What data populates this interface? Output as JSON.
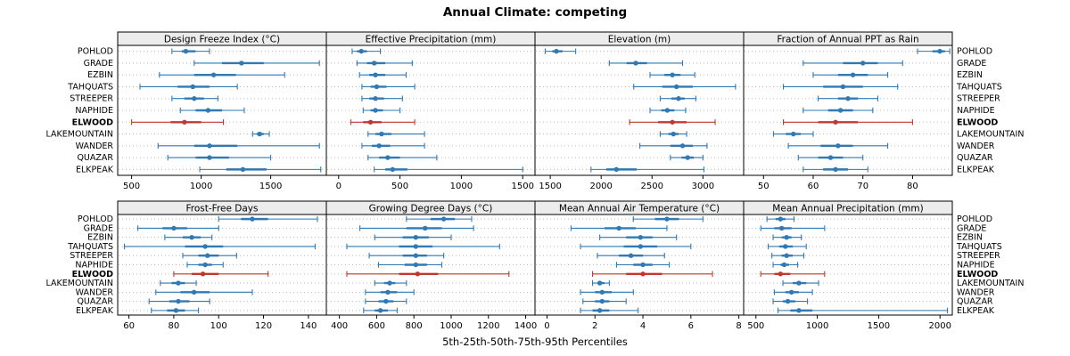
{
  "chart_data": {
    "type": "dotplot",
    "title": "Annual Climate: competing",
    "caption": "5th-25th-50th-75th-95th Percentiles",
    "percentile_labels": [
      "5th",
      "25th",
      "50th",
      "75th",
      "95th"
    ],
    "legend_position": "none",
    "grid": "horizontal-dotted",
    "stations": [
      "POHLOD",
      "GRADE",
      "EZBIN",
      "TAHQUATS",
      "STREEPER",
      "NAPHIDE",
      "ELWOOD",
      "LAKEMOUNTAIN",
      "WANDER",
      "QUAZAR",
      "ELKPEAK"
    ],
    "highlight_station": "ELWOOD",
    "colors": {
      "series": "#2f79b5",
      "highlight": "#c0392b",
      "grid": "#bbbbbb",
      "strip_bg": "#ececec",
      "border": "#000000"
    },
    "panels": [
      {
        "title": "Design Freeze Index (°C)",
        "xlim": [
          400,
          1900
        ],
        "ticks": [
          500,
          1000,
          1500
        ],
        "values": {
          "POHLOD": [
            790,
            860,
            890,
            960,
            1060
          ],
          "GRADE": [
            950,
            1150,
            1290,
            1450,
            1850
          ],
          "EZBIN": [
            700,
            950,
            1090,
            1250,
            1600
          ],
          "TAHQUATS": [
            560,
            830,
            940,
            1060,
            1260
          ],
          "STREEPER": [
            790,
            880,
            950,
            1020,
            1120
          ],
          "NAPHIDE": [
            850,
            960,
            1050,
            1150,
            1310
          ],
          "ELWOOD": [
            500,
            780,
            880,
            1000,
            1160
          ],
          "LAKEMOUNTAIN": [
            1370,
            1400,
            1420,
            1450,
            1490
          ],
          "WANDER": [
            690,
            950,
            1060,
            1260,
            1850
          ],
          "QUAZAR": [
            760,
            960,
            1060,
            1200,
            1500
          ],
          "ELKPEAK": [
            990,
            1180,
            1300,
            1470,
            1860
          ]
        }
      },
      {
        "title": "Effective Precipitation (mm)",
        "xlim": [
          -100,
          1600
        ],
        "ticks": [
          0,
          500,
          1000,
          1500
        ],
        "values": {
          "POHLOD": [
            110,
            150,
            185,
            230,
            340
          ],
          "GRADE": [
            150,
            230,
            290,
            380,
            600
          ],
          "EZBIN": [
            170,
            250,
            300,
            380,
            550
          ],
          "TAHQUATS": [
            190,
            260,
            310,
            390,
            620
          ],
          "STREEPER": [
            190,
            250,
            300,
            370,
            520
          ],
          "NAPHIDE": [
            200,
            260,
            300,
            360,
            500
          ],
          "ELWOOD": [
            100,
            200,
            260,
            350,
            620
          ],
          "LAKEMOUNTAIN": [
            240,
            300,
            350,
            430,
            700
          ],
          "WANDER": [
            190,
            270,
            330,
            420,
            700
          ],
          "QUAZAR": [
            240,
            330,
            400,
            500,
            800
          ],
          "ELKPEAK": [
            290,
            380,
            440,
            560,
            1500
          ]
        }
      },
      {
        "title": "Elevation (m)",
        "xlim": [
          1350,
          3400
        ],
        "ticks": [
          1500,
          2000,
          2500,
          3000
        ],
        "values": {
          "POHLOD": [
            1450,
            1520,
            1560,
            1620,
            1750
          ],
          "GRADE": [
            2080,
            2250,
            2340,
            2450,
            2800
          ],
          "EZBIN": [
            2480,
            2620,
            2700,
            2780,
            2920
          ],
          "TAHQUATS": [
            2320,
            2600,
            2740,
            2900,
            3320
          ],
          "STREEPER": [
            2580,
            2690,
            2760,
            2820,
            2930
          ],
          "NAPHIDE": [
            2480,
            2590,
            2650,
            2720,
            2830
          ],
          "ELWOOD": [
            2280,
            2560,
            2700,
            2840,
            3120
          ],
          "LAKEMOUNTAIN": [
            2580,
            2660,
            2710,
            2760,
            2840
          ],
          "WANDER": [
            2380,
            2680,
            2800,
            2900,
            3040
          ],
          "QUAZAR": [
            2680,
            2790,
            2850,
            2910,
            3000
          ],
          "ELKPEAK": [
            1900,
            2050,
            2150,
            2350,
            3010
          ]
        }
      },
      {
        "title": "Fraction of Annual PPT as Rain",
        "xlim": [
          46,
          88
        ],
        "ticks": [
          50,
          60,
          70,
          80
        ],
        "values": {
          "POHLOD": [
            81,
            84,
            85.5,
            86.5,
            87.5
          ],
          "GRADE": [
            58,
            66,
            70,
            73,
            78
          ],
          "EZBIN": [
            60,
            65,
            68,
            71,
            75
          ],
          "TAHQUATS": [
            54,
            62,
            66,
            70,
            77
          ],
          "STREEPER": [
            61,
            65,
            67,
            69,
            73
          ],
          "NAPHIDE": [
            58,
            63,
            65.5,
            68,
            72
          ],
          "ELWOOD": [
            54,
            61,
            64.5,
            69,
            80
          ],
          "LAKEMOUNTAIN": [
            52,
            54.5,
            56,
            57.5,
            60
          ],
          "WANDER": [
            55,
            61.5,
            65,
            68,
            75
          ],
          "QUAZAR": [
            57,
            61,
            63.5,
            66,
            70
          ],
          "ELKPEAK": [
            58,
            62,
            64.5,
            67,
            71
          ]
        }
      },
      {
        "title": "Frost-Free Days",
        "xlim": [
          55,
          148
        ],
        "ticks": [
          60,
          80,
          100,
          120,
          140
        ],
        "values": {
          "POHLOD": [
            100,
            110,
            115,
            122,
            144
          ],
          "GRADE": [
            64,
            75,
            80,
            86,
            100
          ],
          "EZBIN": [
            76,
            84,
            88,
            92,
            97
          ],
          "TAHQUATS": [
            58,
            85,
            94,
            102,
            143
          ],
          "STREEPER": [
            84,
            91,
            95,
            100,
            108
          ],
          "NAPHIDE": [
            86,
            91,
            94,
            97,
            102
          ],
          "ELWOOD": [
            80,
            88,
            93,
            100,
            122
          ],
          "LAKEMOUNTAIN": [
            74,
            79,
            82,
            85,
            90
          ],
          "WANDER": [
            72,
            83,
            89,
            96,
            115
          ],
          "QUAZAR": [
            69,
            78,
            82,
            87,
            96
          ],
          "ELKPEAK": [
            70,
            77,
            81,
            85,
            91
          ]
        }
      },
      {
        "title": "Growing Degree Days (°C)",
        "xlim": [
          330,
          1450
        ],
        "ticks": [
          400,
          600,
          800,
          1000,
          1200,
          1400
        ],
        "values": {
          "POHLOD": [
            760,
            890,
            960,
            1020,
            1110
          ],
          "GRADE": [
            510,
            760,
            860,
            950,
            1120
          ],
          "EZBIN": [
            590,
            740,
            810,
            880,
            1000
          ],
          "TAHQUATS": [
            440,
            720,
            810,
            900,
            1260
          ],
          "STREEPER": [
            560,
            740,
            810,
            870,
            960
          ],
          "NAPHIDE": [
            610,
            750,
            810,
            870,
            950
          ],
          "ELWOOD": [
            440,
            720,
            820,
            930,
            1310
          ],
          "LAKEMOUNTAIN": [
            590,
            640,
            670,
            700,
            760
          ],
          "WANDER": [
            540,
            620,
            660,
            710,
            800
          ],
          "QUAZAR": [
            540,
            610,
            650,
            690,
            760
          ],
          "ELKPEAK": [
            530,
            590,
            620,
            660,
            710
          ]
        }
      },
      {
        "title": "Mean Annual Air Temperature (°C)",
        "xlim": [
          -0.5,
          8.2
        ],
        "ticks": [
          0,
          2,
          4,
          6,
          8
        ],
        "values": {
          "POHLOD": [
            3.6,
            4.5,
            5.0,
            5.5,
            6.5
          ],
          "GRADE": [
            1.0,
            2.4,
            3.0,
            3.7,
            5.0
          ],
          "EZBIN": [
            2.2,
            3.3,
            3.9,
            4.4,
            5.4
          ],
          "TAHQUATS": [
            1.4,
            3.2,
            3.9,
            4.6,
            6.0
          ],
          "STREEPER": [
            2.1,
            3.0,
            3.5,
            4.0,
            4.9
          ],
          "NAPHIDE": [
            2.9,
            3.6,
            4.0,
            4.4,
            5.1
          ],
          "ELWOOD": [
            1.9,
            3.3,
            4.0,
            4.8,
            6.9
          ],
          "LAKEMOUNTAIN": [
            1.9,
            2.1,
            2.2,
            2.4,
            2.6
          ],
          "WANDER": [
            1.4,
            2.0,
            2.3,
            2.7,
            3.6
          ],
          "QUAZAR": [
            1.5,
            2.0,
            2.3,
            2.6,
            3.3
          ],
          "ELKPEAK": [
            1.4,
            1.9,
            2.2,
            2.6,
            3.8
          ]
        }
      },
      {
        "title": "Mean Annual Precipitation (mm)",
        "xlim": [
          400,
          2100
        ],
        "ticks": [
          500,
          1000,
          1500,
          2000
        ],
        "values": {
          "POHLOD": [
            590,
            660,
            700,
            740,
            810
          ],
          "GRADE": [
            540,
            650,
            710,
            790,
            1060
          ],
          "EZBIN": [
            640,
            710,
            750,
            790,
            870
          ],
          "TAHQUATS": [
            600,
            690,
            740,
            800,
            910
          ],
          "STREEPER": [
            630,
            710,
            750,
            800,
            890
          ],
          "NAPHIDE": [
            640,
            700,
            730,
            770,
            840
          ],
          "ELWOOD": [
            540,
            650,
            700,
            780,
            1060
          ],
          "LAKEMOUNTAIN": [
            720,
            800,
            850,
            910,
            1010
          ],
          "WANDER": [
            650,
            740,
            790,
            850,
            960
          ],
          "QUAZAR": [
            640,
            720,
            760,
            820,
            920
          ],
          "ELKPEAK": [
            680,
            780,
            850,
            960,
            2060
          ]
        }
      }
    ]
  }
}
